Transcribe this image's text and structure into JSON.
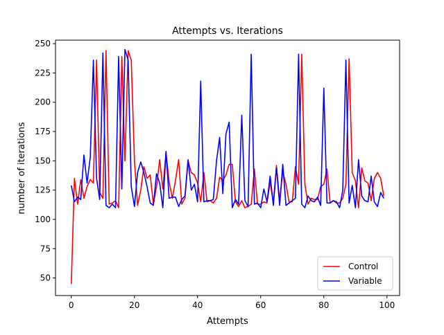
{
  "chart_data": {
    "type": "line",
    "title": "Attempts vs. Iterations",
    "xlabel": "Attempts",
    "ylabel": "number of iterations",
    "xlim": [
      -5,
      104
    ],
    "ylim": [
      35,
      253
    ],
    "xticks": [
      0,
      20,
      40,
      60,
      80,
      100
    ],
    "yticks": [
      50,
      75,
      100,
      125,
      150,
      175,
      200,
      225,
      250
    ],
    "grid": false,
    "legend_position": "lower right",
    "x": [
      0,
      1,
      2,
      3,
      4,
      5,
      6,
      7,
      8,
      9,
      10,
      11,
      12,
      13,
      14,
      15,
      16,
      17,
      18,
      19,
      20,
      21,
      22,
      23,
      24,
      25,
      26,
      27,
      28,
      29,
      30,
      31,
      32,
      33,
      34,
      35,
      36,
      37,
      38,
      39,
      40,
      41,
      42,
      43,
      44,
      45,
      46,
      47,
      48,
      49,
      50,
      51,
      52,
      53,
      54,
      55,
      56,
      57,
      58,
      59,
      60,
      61,
      62,
      63,
      64,
      65,
      66,
      67,
      68,
      69,
      70,
      71,
      72,
      73,
      74,
      75,
      76,
      77,
      78,
      79,
      80,
      81,
      82,
      83,
      84,
      85,
      86,
      87,
      88,
      89,
      90,
      91,
      92,
      93,
      94,
      95,
      96,
      97,
      98,
      99
    ],
    "series": [
      {
        "name": "Control",
        "color": "#ff0000",
        "values": [
          45,
          135,
          113,
          134,
          118,
          128,
          134,
          131,
          236,
          123,
          118,
          244,
          113,
          114,
          116,
          110,
          239,
          150,
          244,
          236,
          150,
          112,
          125,
          145,
          135,
          138,
          113,
          128,
          151,
          126,
          157,
          132,
          118,
          133,
          151,
          113,
          118,
          150,
          140,
          138,
          131,
          115,
          140,
          115,
          116,
          114,
          118,
          136,
          133,
          138,
          147,
          147,
          115,
          111,
          116,
          110,
          111,
          113,
          143,
          113,
          113,
          115,
          114,
          132,
          114,
          146,
          116,
          141,
          130,
          115,
          115,
          145,
          130,
          241,
          130,
          113,
          118,
          117,
          117,
          128,
          130,
          143,
          114,
          116,
          114,
          114,
          118,
          130,
          237,
          140,
          133,
          110,
          144,
          133,
          131,
          116,
          135,
          140,
          135,
          120
        ]
      },
      {
        "name": "Variable",
        "color": "#0000ff",
        "values": [
          129,
          115,
          119,
          117,
          155,
          131,
          153,
          236,
          135,
          117,
          242,
          112,
          110,
          113,
          110,
          239,
          126,
          245,
          236,
          128,
          111,
          140,
          149,
          140,
          128,
          114,
          112,
          139,
          131,
          110,
          158,
          118,
          119,
          119,
          111,
          117,
          120,
          151,
          125,
          130,
          115,
          218,
          115,
          116,
          116,
          117,
          150,
          170,
          122,
          173,
          183,
          110,
          117,
          113,
          189,
          116,
          111,
          241,
          113,
          114,
          110,
          126,
          115,
          137,
          112,
          144,
          112,
          147,
          112,
          114,
          116,
          118,
          241,
          113,
          110,
          120,
          116,
          115,
          119,
          112,
          212,
          114,
          114,
          116,
          115,
          110,
          125,
          236,
          114,
          129,
          110,
          151,
          120,
          116,
          115,
          137,
          115,
          111,
          123,
          118
        ]
      }
    ]
  }
}
